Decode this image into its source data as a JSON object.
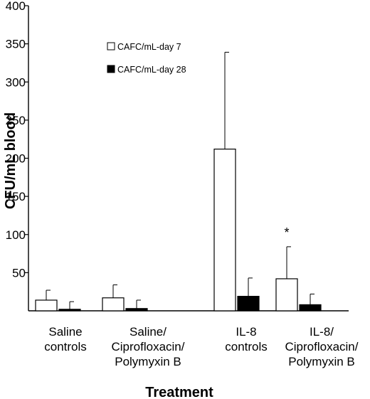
{
  "chart_data": {
    "type": "bar",
    "xlabel": "Treatment",
    "ylabel": "CFU/mL blood",
    "ylim": [
      0,
      400
    ],
    "yticks": [
      50,
      100,
      150,
      200,
      250,
      300,
      350,
      400
    ],
    "categories": [
      [
        "Saline",
        "controls"
      ],
      [
        "Saline/",
        "Ciprofloxacin/",
        "Polymyxin B"
      ],
      [
        "IL-8",
        "controls"
      ],
      [
        "IL-8/",
        "Ciprofloxacin/",
        "Polymyxin B"
      ]
    ],
    "series": [
      {
        "name": "CAFC/mL-day 7",
        "color": "#ffffff",
        "values": [
          14,
          17,
          212,
          42
        ],
        "errors": [
          13,
          17,
          127,
          42
        ]
      },
      {
        "name": "CAFC/mL-day 28",
        "color": "#000000",
        "values": [
          2,
          3,
          19,
          8
        ],
        "errors": [
          10,
          11,
          24,
          14
        ]
      }
    ],
    "legend": "top-left",
    "grid": false,
    "annotations": [
      {
        "text": "*",
        "category_index": 3,
        "series_index": 0
      }
    ]
  }
}
